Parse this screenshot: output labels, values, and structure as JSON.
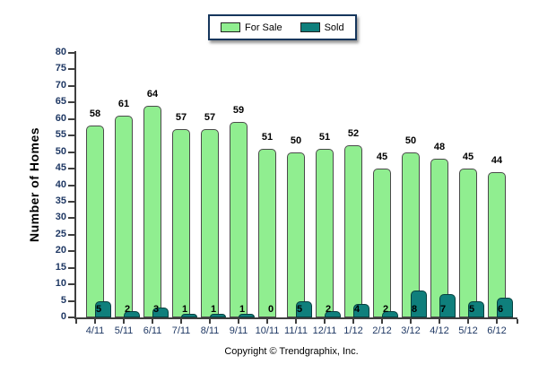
{
  "footer": {
    "copyright": "Copyright © Trendgraphix, Inc."
  },
  "chart_data": {
    "type": "bar",
    "title": "",
    "xlabel": "",
    "ylabel": "Number of Homes",
    "ylim": [
      0,
      80
    ],
    "ytick_step": 5,
    "grid": false,
    "legend_position": "top-center",
    "categories": [
      "4/11",
      "5/11",
      "6/11",
      "7/11",
      "8/11",
      "9/11",
      "10/11",
      "11/11",
      "12/11",
      "1/12",
      "2/12",
      "3/12",
      "4/12",
      "5/12",
      "6/12"
    ],
    "series": [
      {
        "name": "For Sale",
        "color": "#90EE90",
        "values": [
          58,
          61,
          64,
          57,
          57,
          59,
          51,
          50,
          51,
          52,
          45,
          50,
          48,
          45,
          44
        ]
      },
      {
        "name": "Sold",
        "color": "#0F7F7C",
        "values": [
          5,
          2,
          3,
          1,
          1,
          1,
          0,
          5,
          2,
          4,
          2,
          8,
          7,
          5,
          6
        ]
      }
    ],
    "colors": {
      "axis": "#3f3f3f",
      "tick_text": "#1F3864",
      "value_text": "#000000"
    }
  }
}
